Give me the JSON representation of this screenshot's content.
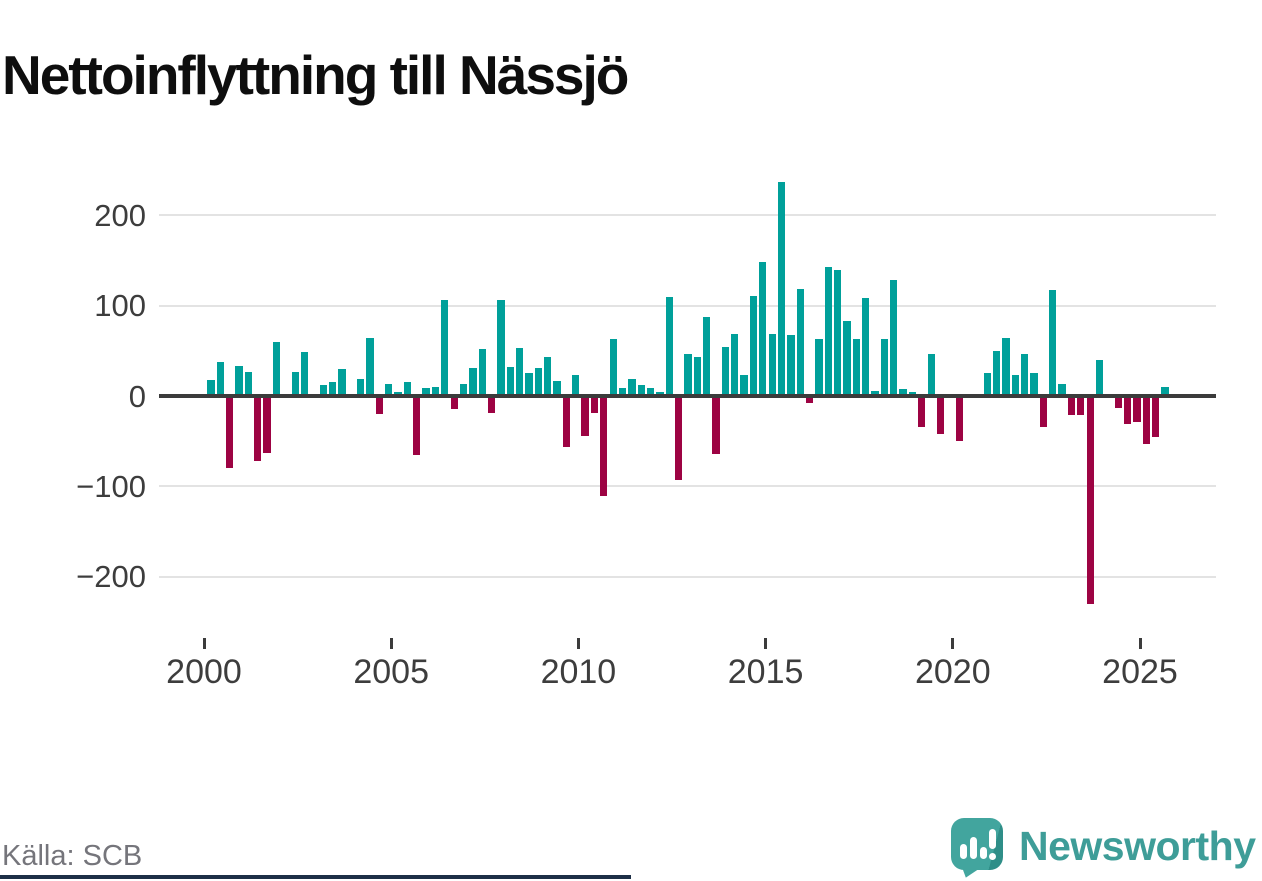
{
  "header": {
    "title": "Nettoinflyttning till Nässjö"
  },
  "footer": {
    "source_label": "Källa: SCB",
    "brand_name": "Newsworthy"
  },
  "colors": {
    "positive_bar": "#00a09a",
    "negative_bar": "#9d0343",
    "zero_line": "#3b3b3b",
    "gridline": "#e3e3e3",
    "axis_text": "#3d3d3d",
    "source_text": "#75757b",
    "brand_teal": "#3e9d98",
    "logo_bubble": "#42a59e",
    "footer_bar": "#1d2f47"
  },
  "chart_data": {
    "type": "bar",
    "title": "Nettoinflyttning till Nässjö",
    "description": "Quarterly net migration to Nässjö; teal bars positive, dark-red bars negative",
    "frequency": "quarterly",
    "x_start": "2000-Q1",
    "x_end": "2025-Q3",
    "grid": "horizontal",
    "legend": "none",
    "ylim": [
      -240,
      250
    ],
    "y_ticks": [
      200,
      100,
      0,
      -100,
      -200
    ],
    "y_tick_labels": [
      "200",
      "100",
      "0",
      "−100",
      "−200"
    ],
    "x_tick_labels": [
      "2000",
      "2005",
      "2010",
      "2015",
      "2020",
      "2025"
    ],
    "series_name": "Nettoinflyttning",
    "values_by_year": {
      "2000": [
        18,
        38,
        -80,
        33
      ],
      "2001": [
        27,
        -72,
        -63,
        60
      ],
      "2002": [
        0,
        27,
        49,
        0
      ],
      "2003": [
        12,
        16,
        30,
        0
      ],
      "2004": [
        19,
        64,
        -20,
        13
      ],
      "2005": [
        4,
        16,
        -65,
        9
      ],
      "2006": [
        10,
        106,
        -14,
        13
      ],
      "2007": [
        31,
        52,
        -19,
        106
      ],
      "2008": [
        32,
        53,
        25,
        31
      ],
      "2009": [
        43,
        17,
        -56,
        23
      ],
      "2010": [
        -44,
        -19,
        -111,
        63
      ],
      "2011": [
        9,
        19,
        12,
        9
      ],
      "2012": [
        4,
        110,
        -93,
        46
      ],
      "2013": [
        43,
        88,
        -64,
        54
      ],
      "2014": [
        69,
        23,
        111,
        148
      ],
      "2015": [
        69,
        237,
        68,
        119
      ],
      "2016": [
        -8,
        63,
        143,
        139
      ],
      "2017": [
        83,
        63,
        109,
        5
      ],
      "2018": [
        63,
        128,
        8,
        4
      ],
      "2019": [
        -34,
        47,
        -42,
        0
      ],
      "2020": [
        -50,
        0,
        0,
        26
      ],
      "2021": [
        50,
        64,
        23,
        47
      ],
      "2022": [
        26,
        -34,
        117,
        13
      ],
      "2023": [
        -21,
        -21,
        -230,
        40
      ],
      "2024": [
        0,
        -13,
        -31,
        -29
      ],
      "2025": [
        -53,
        -45,
        10
      ]
    }
  }
}
